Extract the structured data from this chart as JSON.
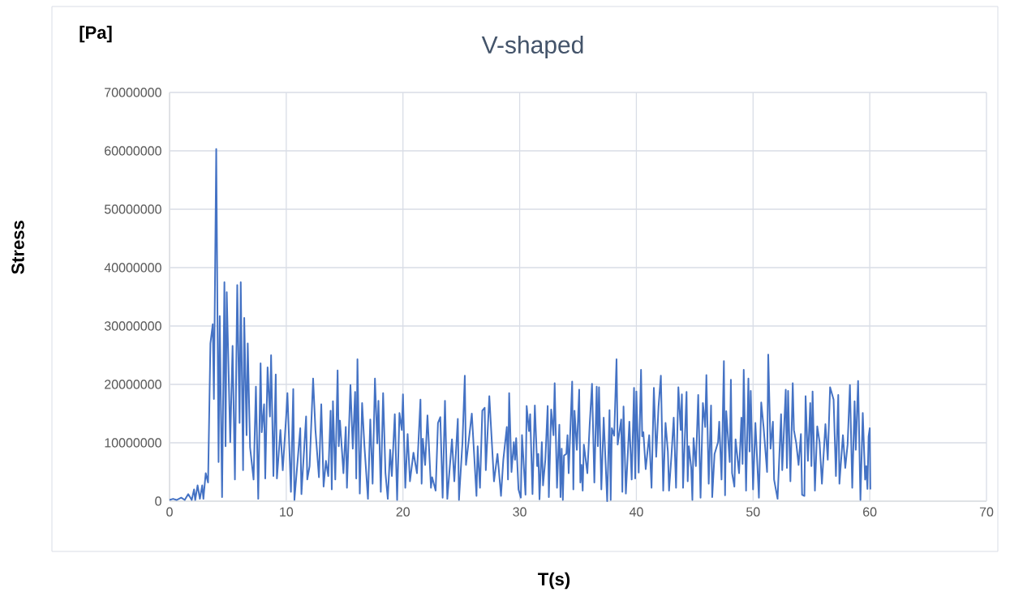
{
  "chart_data": {
    "type": "line",
    "title": "V-shaped",
    "xlabel": "T(s)",
    "ylabel": "Stress",
    "annotations": [
      "[Pa]"
    ],
    "color": "#4472c4",
    "grid": true,
    "xlim": [
      0,
      70
    ],
    "ylim": [
      0,
      70000000
    ],
    "xticks": [
      0,
      10,
      20,
      30,
      40,
      50,
      60,
      70
    ],
    "yticks": [
      0,
      10000000,
      20000000,
      30000000,
      40000000,
      50000000,
      60000000,
      70000000
    ],
    "x": [
      0,
      0.3,
      0.6,
      1.0,
      1.3,
      1.6,
      1.9,
      2.1,
      2.2,
      2.4,
      2.6,
      2.8,
      2.9,
      3.1,
      3.3,
      3.5,
      3.7,
      3.8,
      4.0,
      4.2,
      4.3,
      4.5,
      4.7,
      4.8,
      4.9,
      5.2,
      5.4,
      5.6,
      5.8,
      6.0,
      6.1,
      6.3,
      6.4,
      6.6,
      6.7,
      6.9,
      7.2,
      7.4,
      7.6,
      7.8,
      7.9,
      8.1,
      8.2,
      8.4,
      8.6,
      8.7,
      8.9,
      9.1,
      9.2,
      9.5,
      9.7,
      10.0,
      10.1,
      10.4,
      10.6,
      10.7,
      11.2,
      11.3,
      11.7,
      11.8,
      12.0,
      12.3,
      12.5,
      12.8,
      13.0,
      13.2,
      13.4,
      13.6,
      13.8,
      13.9,
      14.0,
      14.2,
      14.4,
      14.5,
      14.6,
      14.9,
      15.1,
      15.2,
      15.5,
      15.7,
      15.9,
      16.0,
      16.1,
      16.3,
      16.5,
      16.7,
      17.0,
      17.2,
      17.4,
      17.6,
      17.8,
      17.9,
      18.1,
      18.3,
      18.5,
      18.7,
      18.9,
      19.05,
      19.3,
      19.5,
      19.7,
      19.9,
      20.0,
      20.2,
      20.4,
      20.6,
      20.9,
      21.2,
      21.5,
      21.6,
      21.7,
      21.9,
      22.1,
      22.4,
      22.5,
      22.8,
      23.0,
      23.2,
      23.4,
      23.6,
      23.8,
      24.2,
      24.4,
      24.7,
      24.8,
      25.1,
      25.3,
      25.4,
      25.9,
      26.3,
      26.4,
      26.6,
      26.8,
      27.0,
      27.1,
      27.4,
      27.8,
      28.1,
      28.4,
      28.6,
      28.9,
      29.0,
      29.1,
      29.3,
      29.5,
      29.6,
      29.7,
      29.9,
      30.1,
      30.2,
      30.5,
      30.6,
      30.8,
      30.9,
      31.1,
      31.3,
      31.5,
      31.6,
      31.7,
      31.9,
      32.0,
      32.2,
      32.4,
      32.5,
      32.7,
      32.9,
      33.0,
      33.2,
      33.4,
      33.5,
      33.6,
      33.7,
      33.8,
      34.0,
      34.1,
      34.2,
      34.5,
      34.6,
      34.7,
      34.9,
      35.1,
      35.2,
      35.3,
      35.4,
      35.5,
      35.8,
      36.0,
      36.2,
      36.4,
      36.6,
      36.7,
      36.8,
      37.0,
      37.2,
      37.5,
      37.7,
      37.8,
      37.9,
      38.1,
      38.3,
      38.4,
      38.7,
      38.8,
      38.9,
      39.1,
      39.4,
      39.6,
      39.8,
      39.9,
      40.0,
      40.2,
      40.4,
      40.5,
      40.6,
      40.8,
      41.1,
      41.3,
      41.5,
      41.7,
      41.9,
      42.1,
      42.3,
      42.5,
      42.7,
      42.8,
      43.0,
      43.2,
      43.4,
      43.6,
      43.8,
      43.9,
      44.0,
      44.3,
      44.4,
      44.5,
      44.7,
      44.8,
      44.9,
      45.1,
      45.3,
      45.5,
      45.7,
      45.9,
      46.0,
      46.2,
      46.4,
      46.5,
      46.7,
      47.0,
      47.1,
      47.3,
      47.5,
      47.6,
      47.7,
      48.0,
      48.1,
      48.2,
      48.4,
      48.5,
      48.8,
      49.0,
      49.1,
      49.2,
      49.4,
      49.6,
      49.7,
      49.8,
      50.0,
      50.2,
      50.5,
      50.7,
      50.9,
      51.2,
      51.3,
      51.5,
      51.7,
      51.8,
      52.1,
      52.4,
      52.5,
      52.8,
      52.9,
      53.0,
      53.2,
      53.4,
      53.5,
      53.7,
      53.9,
      54.1,
      54.2,
      54.4,
      54.5,
      54.7,
      54.9,
      55.0,
      55.1,
      55.3,
      55.5,
      55.7,
      55.9,
      56.2,
      56.4,
      56.6,
      56.9,
      57.1,
      57.3,
      57.4,
      57.7,
      57.9,
      58.1,
      58.3,
      58.5,
      58.7,
      58.8,
      59.0,
      59.2,
      59.4,
      59.6,
      59.7,
      59.8,
      59.9,
      60.0,
      60.05
    ],
    "values": [
      200000,
      400000,
      200000,
      600000,
      200000,
      1200000,
      200000,
      2000000,
      200000,
      2700000,
      400000,
      2700000,
      400000,
      4800000,
      3200000,
      27000000,
      30300000,
      17500000,
      60300000,
      6700000,
      31700000,
      700000,
      37500000,
      9400000,
      35800000,
      10100000,
      26600000,
      3700000,
      37000000,
      13400000,
      37500000,
      5300000,
      31400000,
      11300000,
      27000000,
      9200000,
      3700000,
      19600000,
      400000,
      23600000,
      11800000,
      16600000,
      3900000,
      22900000,
      14500000,
      25000000,
      4300000,
      21700000,
      3900000,
      12200000,
      5300000,
      14800000,
      18500000,
      1600000,
      19200000,
      200000,
      12500000,
      1200000,
      14500000,
      3700000,
      6000000,
      21000000,
      12200000,
      4100000,
      16600000,
      2500000,
      6900000,
      4300000,
      15500000,
      2000000,
      17100000,
      3700000,
      22400000,
      9400000,
      13800000,
      4800000,
      12700000,
      2300000,
      19900000,
      9000000,
      18700000,
      3900000,
      24300000,
      1300000,
      16800000,
      9400000,
      400000,
      14000000,
      3000000,
      21000000,
      9900000,
      17200000,
      1600000,
      18500000,
      4800000,
      400000,
      8800000,
      4300000,
      14900000,
      200000,
      15100000,
      12200000,
      18300000,
      2300000,
      11500000,
      3400000,
      8300000,
      4800000,
      17400000,
      3000000,
      10700000,
      6200000,
      14700000,
      2300000,
      4100000,
      1800000,
      13400000,
      14400000,
      600000,
      17200000,
      400000,
      10600000,
      3400000,
      14100000,
      200000,
      10100000,
      21500000,
      6200000,
      15000000,
      900000,
      9400000,
      2300000,
      15500000,
      16000000,
      5300000,
      18000000,
      3400000,
      8100000,
      900000,
      7100000,
      12700000,
      3700000,
      18500000,
      5000000,
      10100000,
      7100000,
      10800000,
      2000000,
      600000,
      11300000,
      1100000,
      16300000,
      12000000,
      14900000,
      1200000,
      16400000,
      6000000,
      8100000,
      300000,
      10100000,
      2700000,
      7100000,
      16300000,
      700000,
      15700000,
      11300000,
      20200000,
      2300000,
      13100000,
      700000,
      9000000,
      200000,
      7800000,
      8100000,
      11300000,
      4800000,
      20500000,
      2000000,
      15500000,
      8800000,
      19100000,
      3200000,
      6200000,
      1800000,
      9700000,
      4800000,
      13100000,
      20100000,
      3200000,
      19600000,
      9400000,
      19500000,
      2000000,
      14300000,
      0,
      15600000,
      200000,
      12500000,
      11200000,
      24300000,
      9700000,
      14000000,
      1600000,
      16200000,
      1300000,
      13600000,
      3700000,
      19400000,
      3900000,
      18800000,
      4900000,
      22500000,
      11100000,
      11800000,
      5500000,
      11300000,
      2300000,
      19400000,
      7600000,
      16200000,
      21500000,
      1800000,
      13400000,
      8500000,
      1800000,
      7600000,
      14300000,
      2300000,
      19500000,
      12200000,
      18300000,
      2300000,
      18700000,
      3400000,
      9400000,
      5700000,
      200000,
      10800000,
      6000000,
      18200000,
      600000,
      16800000,
      12700000,
      21600000,
      3000000,
      16400000,
      700000,
      8100000,
      10100000,
      13600000,
      3700000,
      24000000,
      1000000,
      15400000,
      6700000,
      20800000,
      4800000,
      2500000,
      10600000,
      4800000,
      14300000,
      6400000,
      22500000,
      1800000,
      21000000,
      8500000,
      18900000,
      2000000,
      13400000,
      600000,
      16900000,
      12700000,
      5000000,
      25100000,
      9000000,
      13600000,
      3700000,
      400000,
      14900000,
      5300000,
      19100000,
      5700000,
      18900000,
      3400000,
      20200000,
      12200000,
      9900000,
      6200000,
      11500000,
      1100000,
      900000,
      18000000,
      6900000,
      16800000,
      6000000,
      18800000,
      1800000,
      12800000,
      10100000,
      3000000,
      13200000,
      7100000,
      19500000,
      17400000,
      4300000,
      18200000,
      3000000,
      11300000,
      5700000,
      9700000,
      19900000,
      2300000,
      17100000,
      8800000,
      20600000,
      200000,
      15100000,
      3700000,
      6000000,
      2100000,
      11100000,
      12500000,
      2000000
    ]
  }
}
